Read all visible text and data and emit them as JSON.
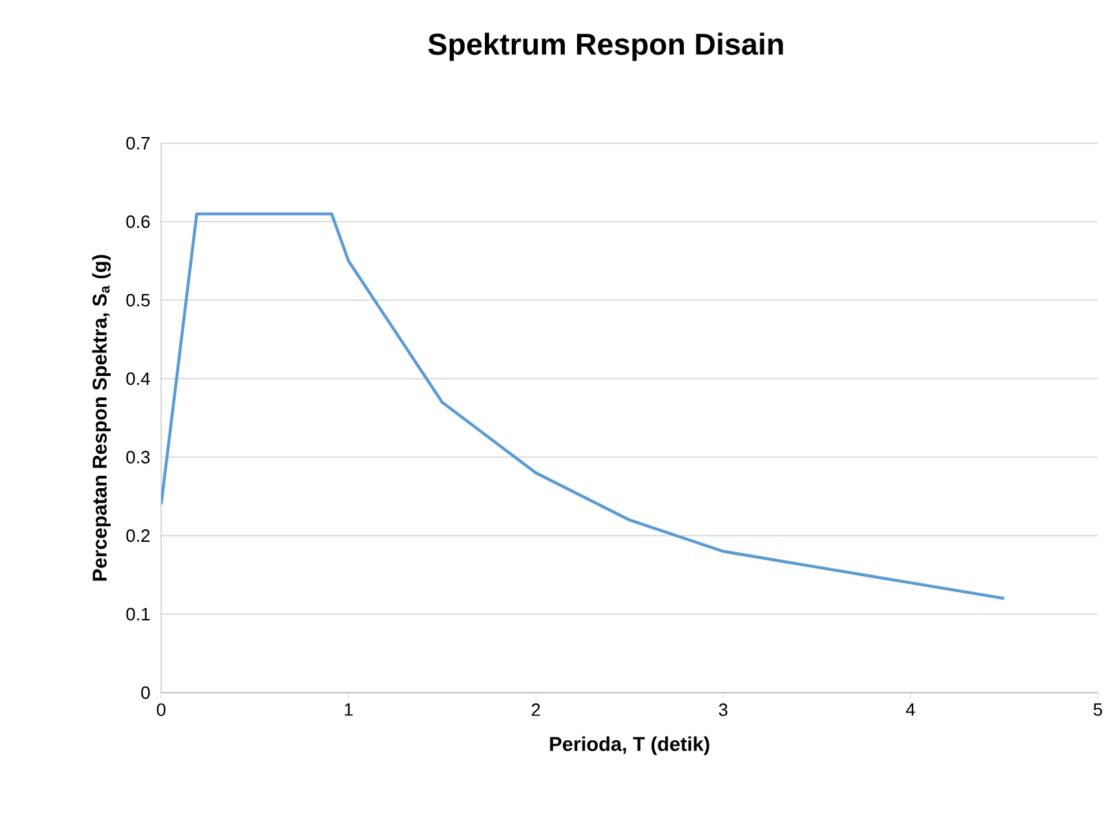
{
  "chart_data": {
    "type": "line",
    "title": "Spektrum Respon Disain",
    "xlabel": "Perioda, T (detik)",
    "ylabel": "Percepatan Respon Spektra, S$_{a}$ (g)",
    "x": [
      0,
      0.19,
      0.91,
      1,
      1.5,
      2,
      2.5,
      3,
      3.5,
      4,
      4.5
    ],
    "series": [
      {
        "color": "#5b9bd5",
        "values": [
          0.24,
          0.61,
          0.61,
          0.55,
          0.37,
          0.28,
          0.22,
          0.18,
          0.16,
          0.14,
          0.12
        ]
      }
    ],
    "xlim": [
      0,
      5
    ],
    "xticks": [
      0,
      1,
      2,
      3,
      4,
      5
    ],
    "ylim": [
      0,
      0.7
    ],
    "yticks": [
      0,
      0.1,
      0.2,
      0.3,
      0.4,
      0.5,
      0.6,
      0.7
    ],
    "grid": "y",
    "marker": "none",
    "line_style": "solid"
  }
}
